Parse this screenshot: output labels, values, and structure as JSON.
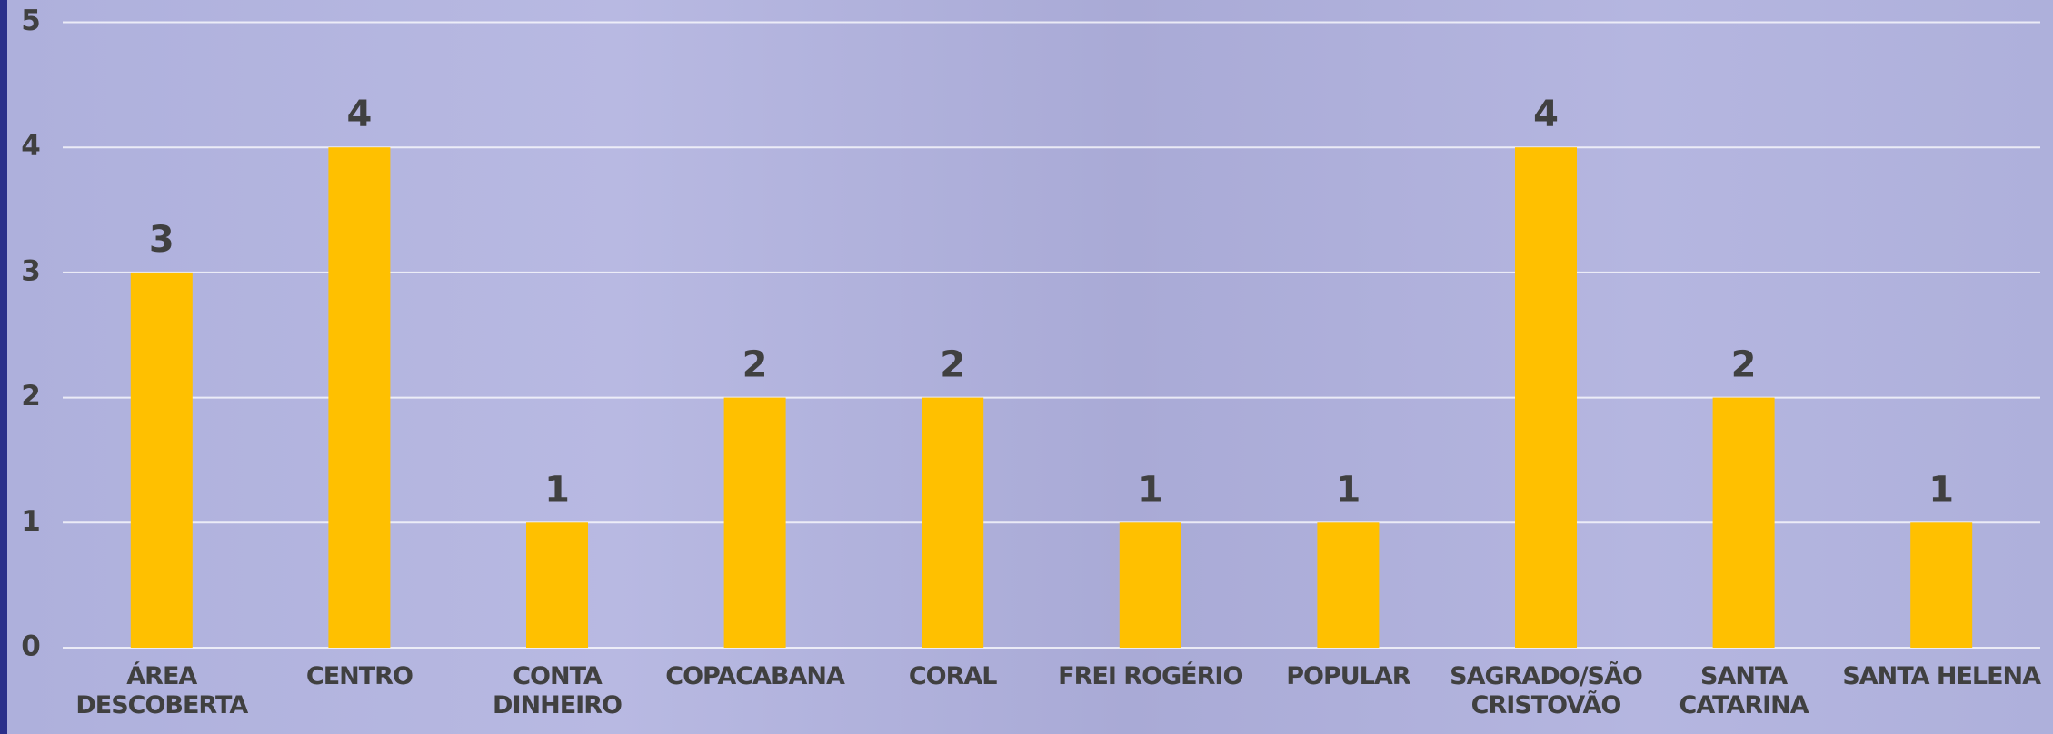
{
  "chart_data": {
    "type": "bar",
    "categories": [
      "ÁREA\nDESCOBERTA",
      "CENTRO",
      "CONTA\nDINHEIRO",
      "COPACABANA",
      "CORAL",
      "FREI ROGÉRIO",
      "POPULAR",
      "SAGRADO/SÃO\nCRISTOVÃO",
      "SANTA\nCATARINA",
      "SANTA HELENA"
    ],
    "values": [
      3,
      4,
      1,
      2,
      2,
      1,
      1,
      4,
      2,
      1
    ],
    "color": "#ffc000",
    "ylim": [
      0,
      5
    ],
    "yticks": [
      0,
      1,
      2,
      3,
      4,
      5
    ],
    "grid": true
  }
}
